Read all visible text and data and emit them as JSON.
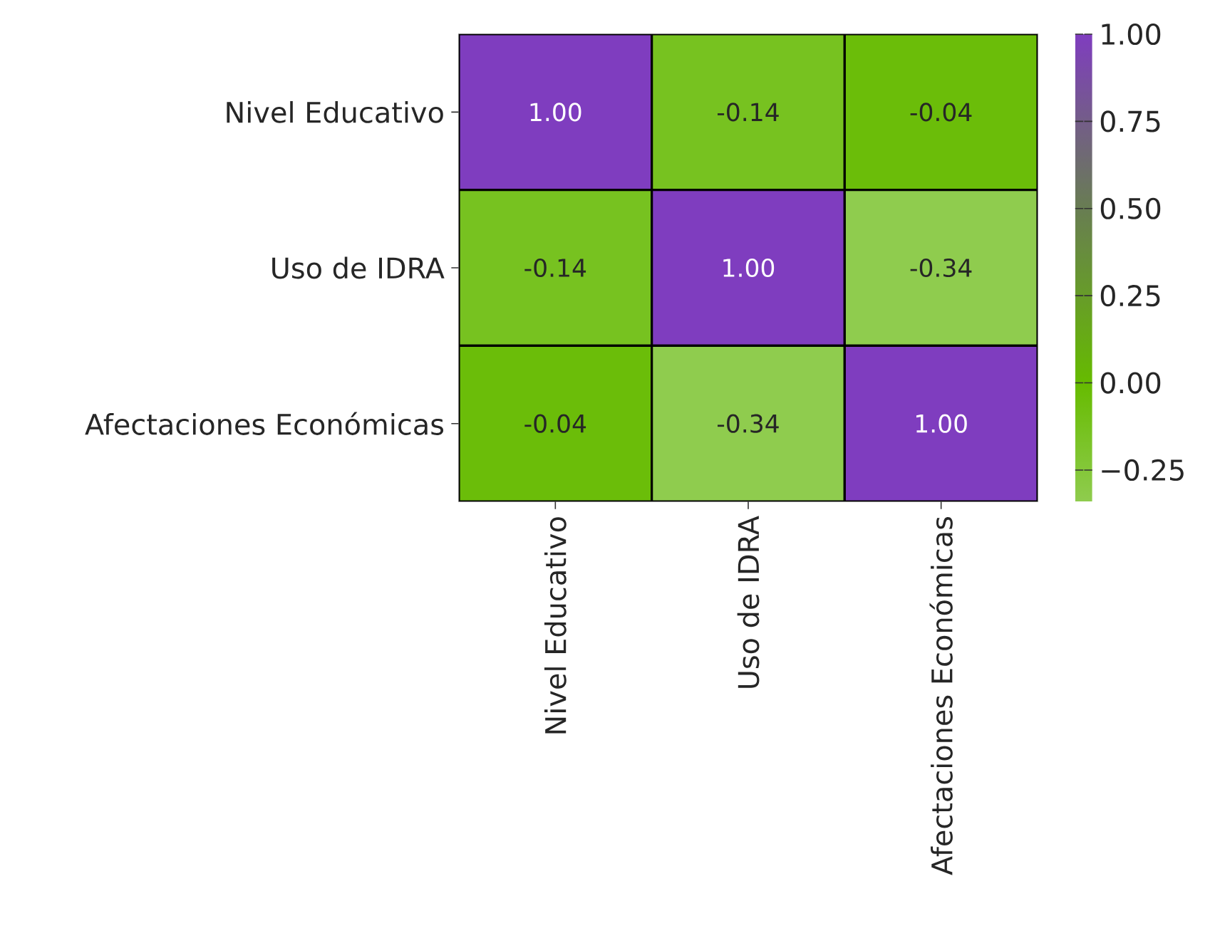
{
  "chart_data": {
    "type": "heatmap",
    "categories": [
      "Nivel Educativo",
      "Uso de IDRA",
      "Afectaciones Económicas"
    ],
    "y_categories": [
      "Nivel Educativo",
      "Uso de IDRA",
      "Afectaciones Económicas"
    ],
    "cells": [
      [
        1.0,
        -0.14,
        -0.04
      ],
      [
        -0.14,
        1.0,
        -0.34
      ],
      [
        -0.04,
        -0.34,
        1.0
      ]
    ],
    "cell_labels": [
      [
        "1.00",
        "-0.14",
        "-0.04"
      ],
      [
        "-0.14",
        "1.00",
        "-0.34"
      ],
      [
        "-0.04",
        "-0.34",
        "1.00"
      ]
    ],
    "clim": [
      -0.34,
      1.0
    ],
    "cticks": [
      {
        "value": -0.25,
        "label": "−0.25"
      },
      {
        "value": 0,
        "label": "0.00"
      },
      {
        "value": 0.25,
        "label": "0.25"
      },
      {
        "value": 0.5,
        "label": "0.50"
      },
      {
        "value": 0.75,
        "label": "0.75"
      },
      {
        "value": 1.0,
        "label": "1.00"
      }
    ]
  }
}
